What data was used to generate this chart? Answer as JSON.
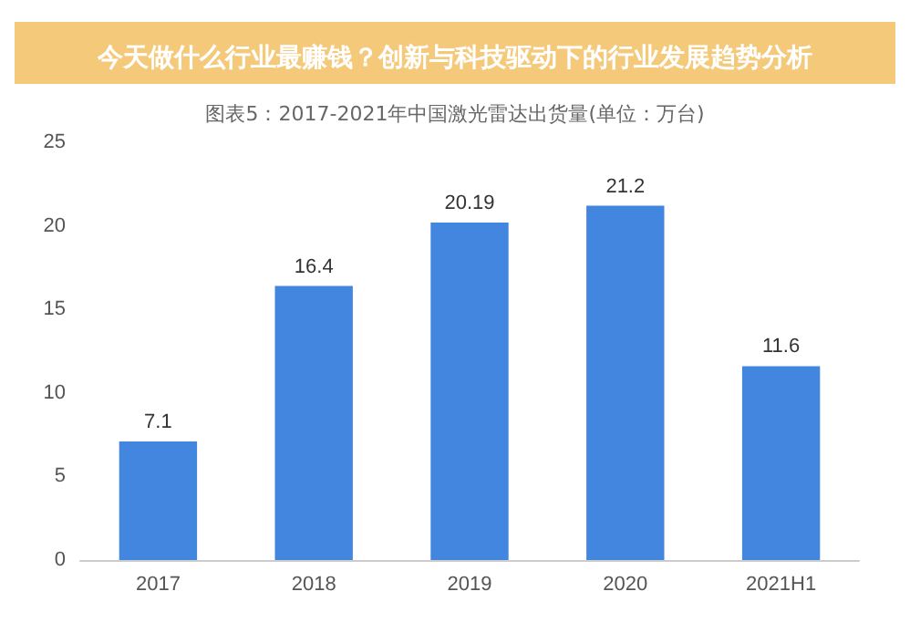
{
  "chart_data": {
    "type": "bar",
    "title": "今天做什么行业最赚钱？创新与科技驱动下的行业发展趋势分析",
    "subtitle": "图表5：2017-2021年中国激光雷达出货量(单位：万台)",
    "categories": [
      "2017",
      "2018",
      "2019",
      "2020",
      "2021H1"
    ],
    "values": [
      7.1,
      16.4,
      20.19,
      21.2,
      11.6
    ],
    "color": "#4286e0",
    "ylim": [
      0,
      25
    ],
    "yticks": [
      0,
      5,
      10,
      15,
      20,
      25
    ],
    "grid": false,
    "data_labels": true
  }
}
